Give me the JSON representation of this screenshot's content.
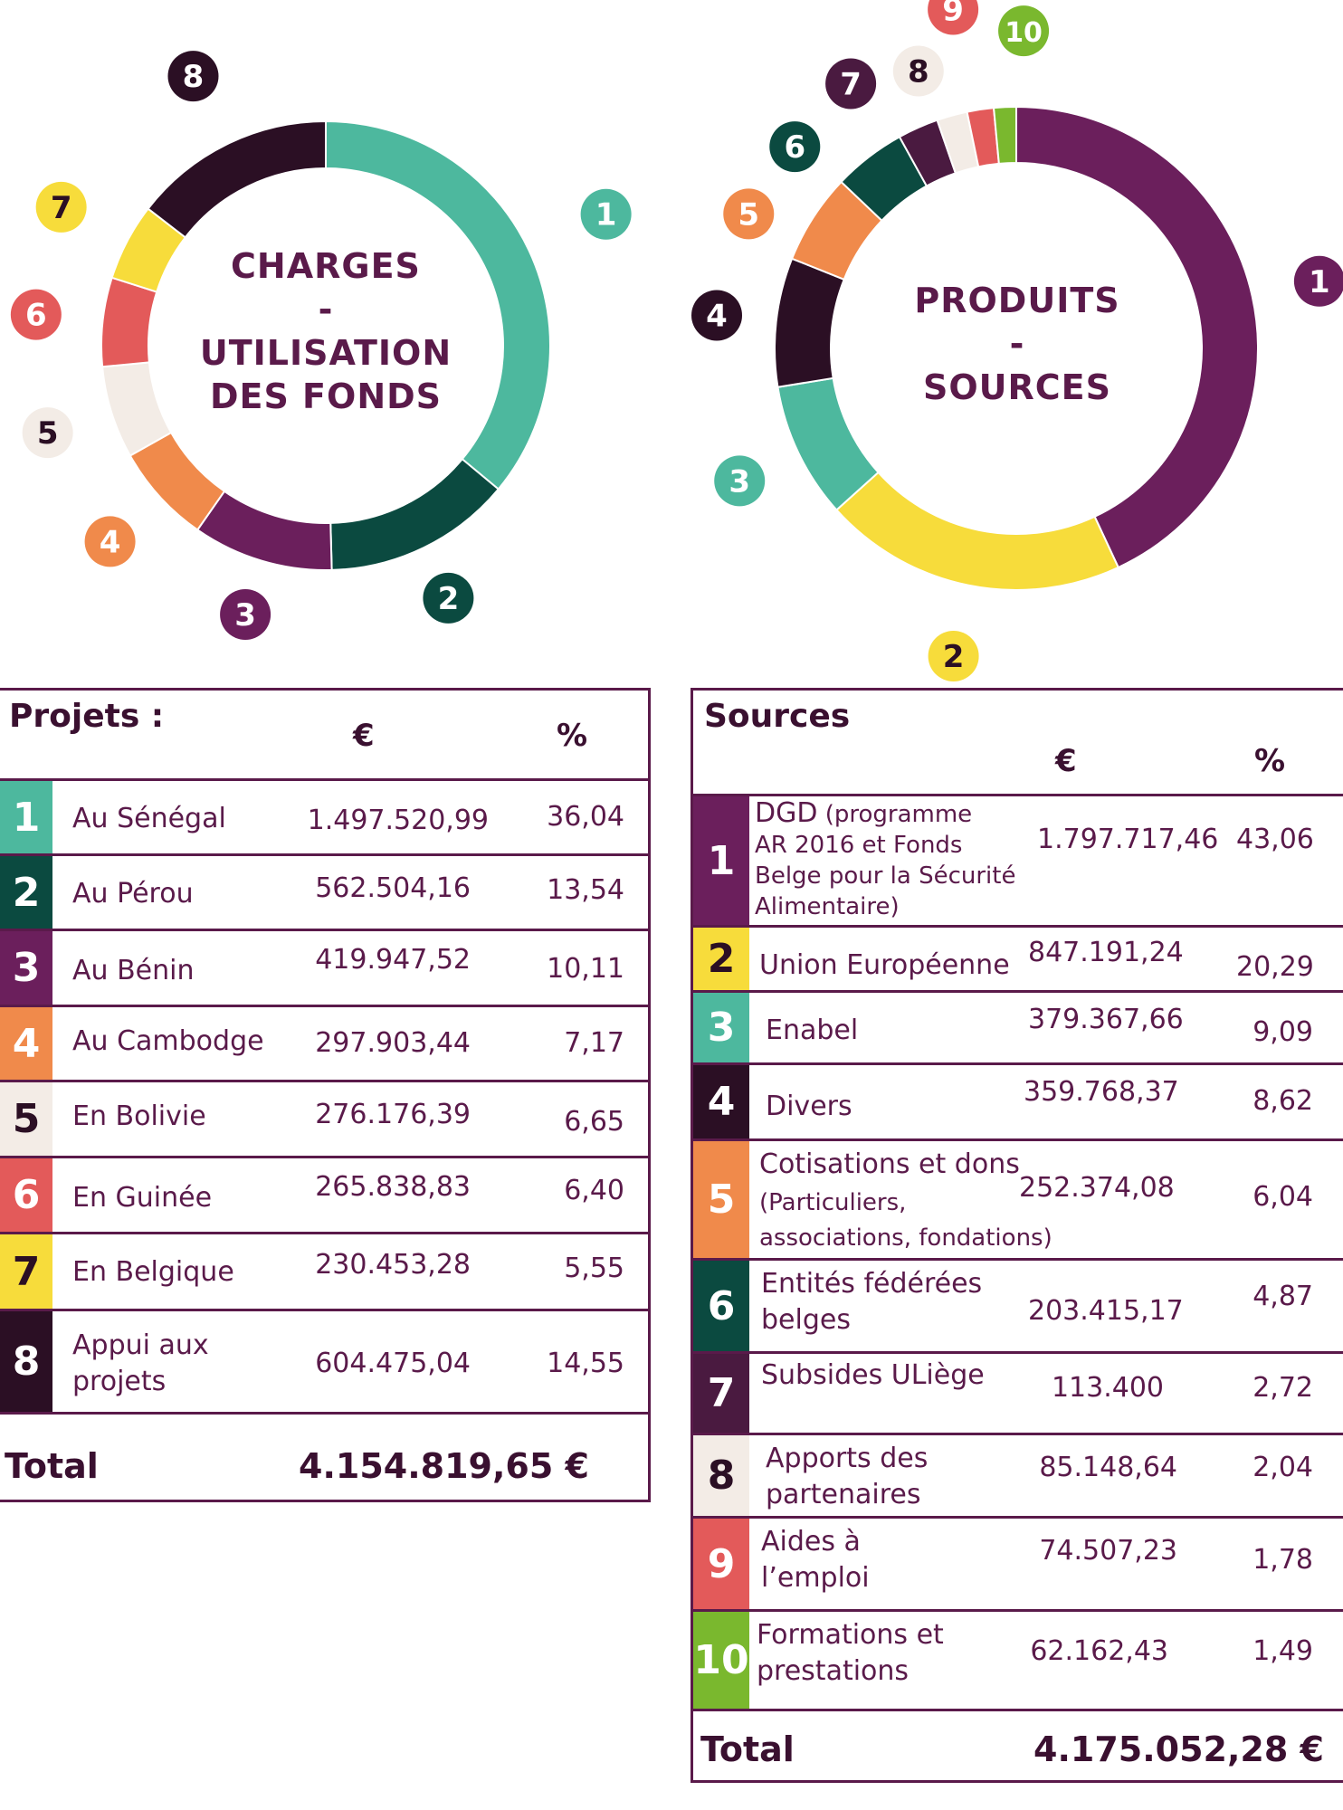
{
  "chart_data": [
    {
      "type": "pie",
      "title_lines": [
        "CHARGES",
        "-",
        "UTILISATION",
        "DES FONDS"
      ],
      "slices": [
        {
          "label": "1",
          "value": 36.04,
          "color": "#4db89e"
        },
        {
          "label": "2",
          "value": 13.54,
          "color": "#0b4a40"
        },
        {
          "label": "3",
          "value": 10.11,
          "color": "#6b1f5c"
        },
        {
          "label": "4",
          "value": 7.17,
          "color": "#f08a4b"
        },
        {
          "label": "5",
          "value": 6.65,
          "color": "#f3ece6"
        },
        {
          "label": "6",
          "value": 6.4,
          "color": "#e35a5a"
        },
        {
          "label": "7",
          "value": 5.55,
          "color": "#f7dc3b"
        },
        {
          "label": "8",
          "value": 14.55,
          "color": "#2b0f24"
        }
      ]
    },
    {
      "type": "pie",
      "title_lines": [
        "PRODUITS",
        "-",
        "SOURCES"
      ],
      "slices": [
        {
          "label": "1",
          "value": 43.06,
          "color": "#6b1f5c"
        },
        {
          "label": "2",
          "value": 20.29,
          "color": "#f7dc3b"
        },
        {
          "label": "3",
          "value": 9.09,
          "color": "#4db89e"
        },
        {
          "label": "4",
          "value": 8.62,
          "color": "#2b0f24"
        },
        {
          "label": "5",
          "value": 6.04,
          "color": "#f08a4b"
        },
        {
          "label": "6",
          "value": 4.87,
          "color": "#0b4a40"
        },
        {
          "label": "7",
          "value": 2.72,
          "color": "#4a1a40"
        },
        {
          "label": "8",
          "value": 2.04,
          "color": "#f3ece6"
        },
        {
          "label": "9",
          "value": 1.78,
          "color": "#e35a5a"
        },
        {
          "label": "10",
          "value": 1.49,
          "color": "#7ab82e"
        }
      ]
    }
  ],
  "projects": {
    "title": "Projets :",
    "col_euro": "€",
    "col_pct": "%",
    "rows": [
      {
        "num": "1",
        "label": "Au Sénégal",
        "amount": "1.497.520,99",
        "pct": "36,04"
      },
      {
        "num": "2",
        "label": "Au Pérou",
        "amount": "562.504,16",
        "pct": "13,54"
      },
      {
        "num": "3",
        "label": "Au Bénin",
        "amount": "419.947,52",
        "pct": "10,11"
      },
      {
        "num": "4",
        "label": "Au Cambodge",
        "amount": "297.903,44",
        "pct": "7,17"
      },
      {
        "num": "5",
        "label": "En Bolivie",
        "amount": "276.176,39",
        "pct": "6,65"
      },
      {
        "num": "6",
        "label": "En Guinée",
        "amount": "265.838,83",
        "pct": "6,40"
      },
      {
        "num": "7",
        "label": "En Belgique",
        "amount": "230.453,28",
        "pct": "5,55"
      },
      {
        "num": "8",
        "label_l1": "Appui aux",
        "label_l2": "projets",
        "amount": "604.475,04",
        "pct": "14,55"
      }
    ],
    "total_label": "Total",
    "total_value": "4.154.819,65 €"
  },
  "sources": {
    "title": "Sources",
    "col_euro": "€",
    "col_pct": "%",
    "rows": [
      {
        "num": "1",
        "label_main": "DGD",
        "label_rest": " (programme",
        "label_l2": "AR 2016 et Fonds",
        "label_l3": "Belge pour la Sécurité",
        "label_l4": "Alimentaire)",
        "amount": "1.797.717,46",
        "pct": "43,06"
      },
      {
        "num": "2",
        "label": "Union Européenne",
        "amount": "847.191,24",
        "pct": "20,29"
      },
      {
        "num": "3",
        "label": "Enabel",
        "amount": "379.367,66",
        "pct": "9,09"
      },
      {
        "num": "4",
        "label": "Divers",
        "amount": "359.768,37",
        "pct": "8,62"
      },
      {
        "num": "5",
        "label_l1": "Cotisations et dons",
        "label_l2": "(Particuliers,",
        "label_l3": "associations, fondations)",
        "amount": "252.374,08",
        "pct": "6,04"
      },
      {
        "num": "6",
        "label_l1": "Entités fédérées",
        "label_l2": "belges",
        "amount": "203.415,17",
        "pct": "4,87"
      },
      {
        "num": "7",
        "label": "Subsides ULiège",
        "amount": "113.400",
        "pct": "2,72"
      },
      {
        "num": "8",
        "label_l1": "Apports des",
        "label_l2": "partenaires",
        "amount": "85.148,64",
        "pct": "2,04"
      },
      {
        "num": "9",
        "label_l1": "Aides à",
        "label_l2": "l’emploi",
        "amount": "74.507,23",
        "pct": "1,78"
      },
      {
        "num": "10",
        "label_l1": "Formations et",
        "label_l2": "prestations",
        "amount": "62.162,43",
        "pct": "1,49"
      }
    ],
    "total_label": "Total",
    "total_value": "4.175.052,28 €"
  }
}
